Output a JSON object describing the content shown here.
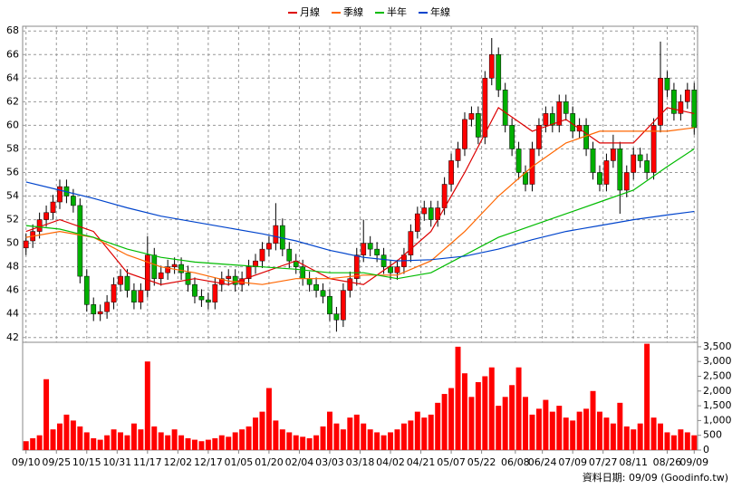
{
  "chart_data": {
    "type": "candlestick",
    "up_color": "#ff0000",
    "down_color": "#00b000",
    "grid": true,
    "xlim": [
      -0.5,
      99.5
    ],
    "xticks": [
      {
        "value": 0,
        "label": "09/10"
      },
      {
        "value": 4.5,
        "label": "09/25"
      },
      {
        "value": 9,
        "label": "10/15"
      },
      {
        "value": 13.5,
        "label": "10/31"
      },
      {
        "value": 18,
        "label": "11/17"
      },
      {
        "value": 22.5,
        "label": "12/02"
      },
      {
        "value": 27,
        "label": "12/17"
      },
      {
        "value": 31.5,
        "label": "01/05"
      },
      {
        "value": 36,
        "label": "01/20"
      },
      {
        "value": 40.5,
        "label": "02/04"
      },
      {
        "value": 45,
        "label": "03/03"
      },
      {
        "value": 49.5,
        "label": "03/18"
      },
      {
        "value": 54,
        "label": "04/02"
      },
      {
        "value": 58.5,
        "label": "04/21"
      },
      {
        "value": 63,
        "label": "05/07"
      },
      {
        "value": 67.5,
        "label": "05/22"
      },
      {
        "value": 72.5,
        "label": "06/08"
      },
      {
        "value": 76.5,
        "label": "06/24"
      },
      {
        "value": 81,
        "label": "07/09"
      },
      {
        "value": 85.5,
        "label": "07/27"
      },
      {
        "value": 90,
        "label": "08/11"
      },
      {
        "value": 95,
        "label": "08/26"
      },
      {
        "value": 99,
        "label": "09/09"
      }
    ],
    "ylim": [
      41.6,
      68.4
    ],
    "yticks": [
      42,
      44,
      46,
      48,
      50,
      52,
      54,
      56,
      58,
      60,
      62,
      64,
      66,
      68
    ],
    "y2lim": [
      0,
      3650
    ],
    "y2ticks": [
      0,
      500,
      {
        "value": 1000,
        "label": "1,000"
      },
      {
        "value": 1500,
        "label": "1,500"
      },
      {
        "value": 2000,
        "label": "2,000"
      },
      {
        "value": 2500,
        "label": "2,500"
      },
      {
        "value": 3000,
        "label": "3,000"
      },
      {
        "value": 3500,
        "label": "3,500"
      }
    ],
    "open": [
      49.6,
      50.2,
      51,
      52,
      52.6,
      53.5,
      54.8,
      54,
      53.2,
      47.2,
      44.8,
      44,
      44.2,
      45,
      46.5,
      47.2,
      46,
      45,
      46,
      49,
      47,
      47.5,
      48,
      48.2,
      47.5,
      46.5,
      45.5,
      45.2,
      45,
      46.5,
      47,
      47.2,
      46.5,
      47,
      48,
      48.5,
      49.5,
      50,
      51.5,
      49.5,
      48.5,
      48,
      47,
      46.5,
      46,
      45.5,
      44,
      43.5,
      46,
      47,
      49,
      50,
      49.5,
      49,
      48,
      47.5,
      48,
      49,
      51,
      52.5,
      53,
      52,
      53,
      55,
      57,
      58,
      60.5,
      61,
      59,
      64,
      66,
      63,
      60,
      58,
      56,
      55,
      58,
      60,
      61,
      60,
      62,
      61,
      59.5,
      60,
      58,
      56,
      55,
      57,
      58,
      54.5,
      56,
      57.5,
      57,
      56,
      60,
      64,
      63,
      61,
      62,
      63
    ],
    "high": [
      50.8,
      51.6,
      52.6,
      53.2,
      54.1,
      55.4,
      55.4,
      54.6,
      53.8,
      47.8,
      45.4,
      44.8,
      45.6,
      47.1,
      47.8,
      47.8,
      46.6,
      46.6,
      50.6,
      49.6,
      48.1,
      48.6,
      48.8,
      48.8,
      48.1,
      47.1,
      46.1,
      45.8,
      47.1,
      47.6,
      47.8,
      47.8,
      47.6,
      48.6,
      49.1,
      50.1,
      50.6,
      53.4,
      52.1,
      50.1,
      49.1,
      48.6,
      47.6,
      47.1,
      46.6,
      46.1,
      44.6,
      46.6,
      47.6,
      49.6,
      52,
      50.6,
      50.1,
      49.6,
      48.6,
      48.6,
      49.6,
      51.6,
      53.1,
      53.6,
      53.6,
      53.6,
      55.6,
      57.6,
      58.6,
      61.1,
      61.6,
      61.6,
      64.6,
      67.4,
      66.6,
      63.6,
      60.6,
      58.6,
      56.6,
      58.6,
      60.6,
      61.6,
      61.6,
      62.6,
      62.6,
      61.6,
      60.6,
      60.6,
      58.6,
      56.6,
      57.6,
      59.2,
      58.6,
      56.6,
      58.1,
      58.1,
      57.6,
      60.6,
      67.1,
      64.6,
      63.6,
      62.6,
      63.6,
      63.6
    ],
    "low": [
      49,
      49.6,
      50.4,
      51.4,
      52,
      52.9,
      53.4,
      52.6,
      46.6,
      44.2,
      43.4,
      43.4,
      43.6,
      44.4,
      45.9,
      45.4,
      44.4,
      44.4,
      45.4,
      46.4,
      46.4,
      46.9,
      47.4,
      46.9,
      45.9,
      44.9,
      44.6,
      44.4,
      44.4,
      45.9,
      46.4,
      45.9,
      45.9,
      46.4,
      47.4,
      47.9,
      48.9,
      49.4,
      48.9,
      47.9,
      47.4,
      46.4,
      45.9,
      45.4,
      44.9,
      43.4,
      42.5,
      42.9,
      45.4,
      46.4,
      48.4,
      48.9,
      48.4,
      47.4,
      46.9,
      46.9,
      47.4,
      48.4,
      50.4,
      51.9,
      51.4,
      51.4,
      52.4,
      54.4,
      56.4,
      57.4,
      59.9,
      58.4,
      58.4,
      63.4,
      62.4,
      59.4,
      57.4,
      55.4,
      54.4,
      54.4,
      57.4,
      59.4,
      59.4,
      59.4,
      60.4,
      58.9,
      58.9,
      57.4,
      55.4,
      54.4,
      54.4,
      56.4,
      52.5,
      53.9,
      55.4,
      56.4,
      55.4,
      55.4,
      59.4,
      62.4,
      60.4,
      60.4,
      61.4,
      59.2
    ],
    "close": [
      50.2,
      51,
      52,
      52.6,
      53.5,
      54.8,
      54,
      53.2,
      47.2,
      44.8,
      44,
      44.2,
      45,
      46.5,
      47.2,
      46,
      45,
      46,
      49,
      47,
      47.5,
      48,
      48.2,
      47.5,
      46.5,
      45.5,
      45.2,
      45,
      46.5,
      47,
      47.2,
      46.5,
      47,
      48,
      48.5,
      49.5,
      50,
      51.5,
      49.5,
      48.5,
      48,
      47,
      46.5,
      46,
      45.5,
      44,
      43.5,
      46,
      47,
      49,
      50,
      49.5,
      49,
      48,
      47.5,
      48,
      49,
      51,
      52.5,
      53,
      52,
      53,
      55,
      57,
      58,
      60.5,
      61,
      59,
      64,
      66,
      63,
      60,
      58,
      56,
      55,
      58,
      60,
      61,
      60,
      62,
      61,
      59.5,
      60,
      58,
      56,
      55,
      57,
      58,
      54.5,
      56,
      57.5,
      57,
      56,
      60,
      64,
      63,
      61,
      62,
      63,
      59.8
    ],
    "volume": {
      "color": "#ff0000",
      "values": [
        300,
        400,
        500,
        2400,
        700,
        900,
        1200,
        1000,
        800,
        600,
        400,
        350,
        500,
        700,
        600,
        500,
        900,
        700,
        3000,
        800,
        600,
        500,
        700,
        500,
        400,
        350,
        300,
        350,
        400,
        500,
        450,
        600,
        700,
        800,
        1100,
        1300,
        2100,
        1000,
        700,
        600,
        500,
        450,
        400,
        500,
        800,
        1300,
        900,
        700,
        1100,
        1200,
        900,
        700,
        600,
        500,
        600,
        700,
        900,
        1000,
        1300,
        1100,
        1200,
        1600,
        1900,
        2100,
        3500,
        2600,
        1800,
        2300,
        2500,
        2800,
        1500,
        1800,
        2200,
        2800,
        1800,
        1200,
        1400,
        1700,
        1300,
        1500,
        1100,
        1000,
        1300,
        1400,
        2000,
        1300,
        1100,
        900,
        1600,
        800,
        700,
        900,
        3600,
        1100,
        900,
        600,
        500,
        700,
        600,
        500
      ]
    },
    "series": [
      {
        "name": "月線",
        "color": "#dd0000",
        "x": [
          0,
          5,
          10,
          15,
          20,
          25,
          30,
          35,
          40,
          45,
          50,
          55,
          60,
          65,
          70,
          75,
          80,
          85,
          90,
          95,
          99
        ],
        "values": [
          51,
          52,
          51,
          47.5,
          46.5,
          47,
          46.5,
          47.5,
          48.5,
          47,
          46.5,
          48.5,
          51,
          56,
          61.5,
          59.5,
          60.5,
          58.5,
          58.5,
          61.5,
          61
        ]
      },
      {
        "name": "季線",
        "color": "#ff6600",
        "x": [
          0,
          5,
          10,
          15,
          20,
          25,
          30,
          35,
          40,
          45,
          50,
          55,
          60,
          65,
          70,
          75,
          80,
          85,
          90,
          95,
          99
        ],
        "values": [
          50.5,
          51,
          50.5,
          49,
          48,
          47.5,
          46.8,
          46.5,
          47,
          47,
          47.3,
          47.3,
          48.5,
          51,
          54,
          56.5,
          58.5,
          59.5,
          59.5,
          59.5,
          59.8
        ]
      },
      {
        "name": "半年",
        "color": "#00bb00",
        "x": [
          0,
          5,
          10,
          15,
          20,
          25,
          30,
          35,
          40,
          45,
          50,
          55,
          60,
          65,
          70,
          75,
          80,
          85,
          90,
          95,
          99
        ],
        "values": [
          51.5,
          51.2,
          50.5,
          49.5,
          48.8,
          48.4,
          48.2,
          48,
          47.8,
          47.5,
          47.5,
          47,
          47.5,
          49,
          50.5,
          51.5,
          52.5,
          53.5,
          54.5,
          56.5,
          58
        ]
      },
      {
        "name": "年線",
        "color": "#0044cc",
        "x": [
          0,
          5,
          10,
          15,
          20,
          25,
          30,
          35,
          40,
          45,
          50,
          55,
          60,
          65,
          70,
          75,
          80,
          85,
          90,
          95,
          99
        ],
        "values": [
          55.2,
          54.5,
          53.8,
          53,
          52.3,
          51.8,
          51.3,
          50.8,
          50.2,
          49.4,
          48.8,
          48.5,
          48.6,
          48.9,
          49.5,
          50.3,
          51,
          51.5,
          52,
          52.4,
          52.7
        ]
      }
    ],
    "footer": "資料日期: 09/09 (Goodinfo.tw)"
  }
}
